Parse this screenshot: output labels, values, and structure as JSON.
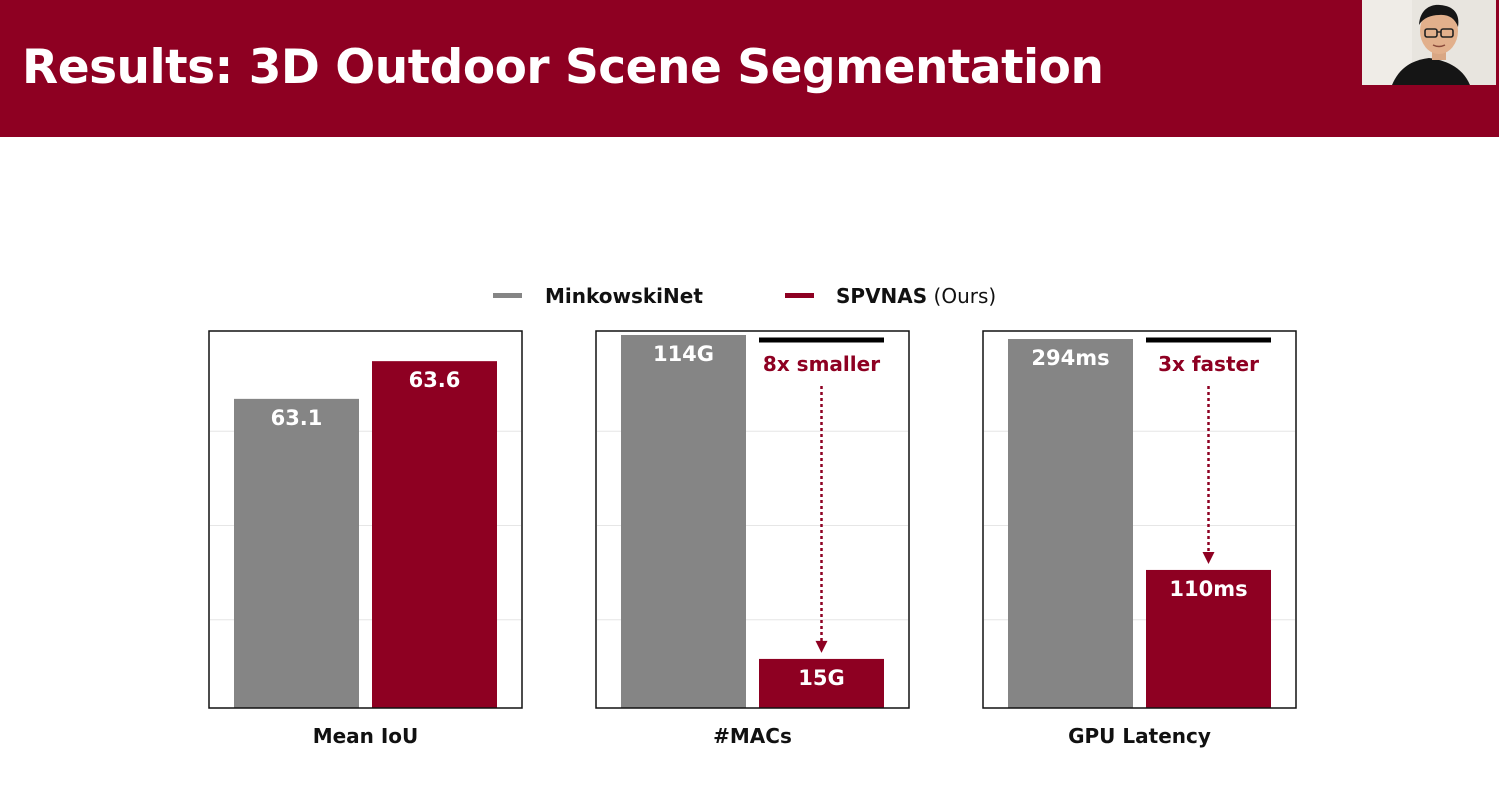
{
  "slide": {
    "title": "Results: 3D Outdoor Scene Segmentation"
  },
  "colors": {
    "header_bg": "#8e0022",
    "minkowski": "#858585",
    "spvnas": "#8e0022",
    "annotation": "#8e0022"
  },
  "legend": {
    "items": [
      {
        "name": "MinkowskiNet",
        "suffix": "",
        "color": "#858585"
      },
      {
        "name": "SPVNAS",
        "suffix": "(Ours)",
        "color": "#8e0022"
      }
    ]
  },
  "chart_data": [
    {
      "type": "bar",
      "xlabel": "Mean IoU",
      "ylim": [
        59,
        64
      ],
      "grid": true,
      "series": [
        {
          "name": "MinkowskiNet",
          "values": [
            63.1
          ],
          "labels": [
            "63.1"
          ]
        },
        {
          "name": "SPVNAS",
          "values": [
            63.6
          ],
          "labels": [
            "63.6"
          ]
        }
      ],
      "annotation": null
    },
    {
      "type": "bar",
      "xlabel": "#MACs",
      "ylim": [
        0,
        114
      ],
      "grid": true,
      "series": [
        {
          "name": "MinkowskiNet",
          "values": [
            114
          ],
          "labels": [
            "114G"
          ]
        },
        {
          "name": "SPVNAS",
          "values": [
            15
          ],
          "labels": [
            "15G"
          ]
        }
      ],
      "annotation": {
        "text": "8x smaller"
      }
    },
    {
      "type": "bar",
      "xlabel": "GPU Latency",
      "ylim": [
        0,
        294
      ],
      "grid": true,
      "series": [
        {
          "name": "MinkowskiNet",
          "values": [
            294
          ],
          "labels": [
            "294ms"
          ]
        },
        {
          "name": "SPVNAS",
          "values": [
            110
          ],
          "labels": [
            "110ms"
          ]
        }
      ],
      "annotation": {
        "text": "3x faster"
      }
    }
  ]
}
